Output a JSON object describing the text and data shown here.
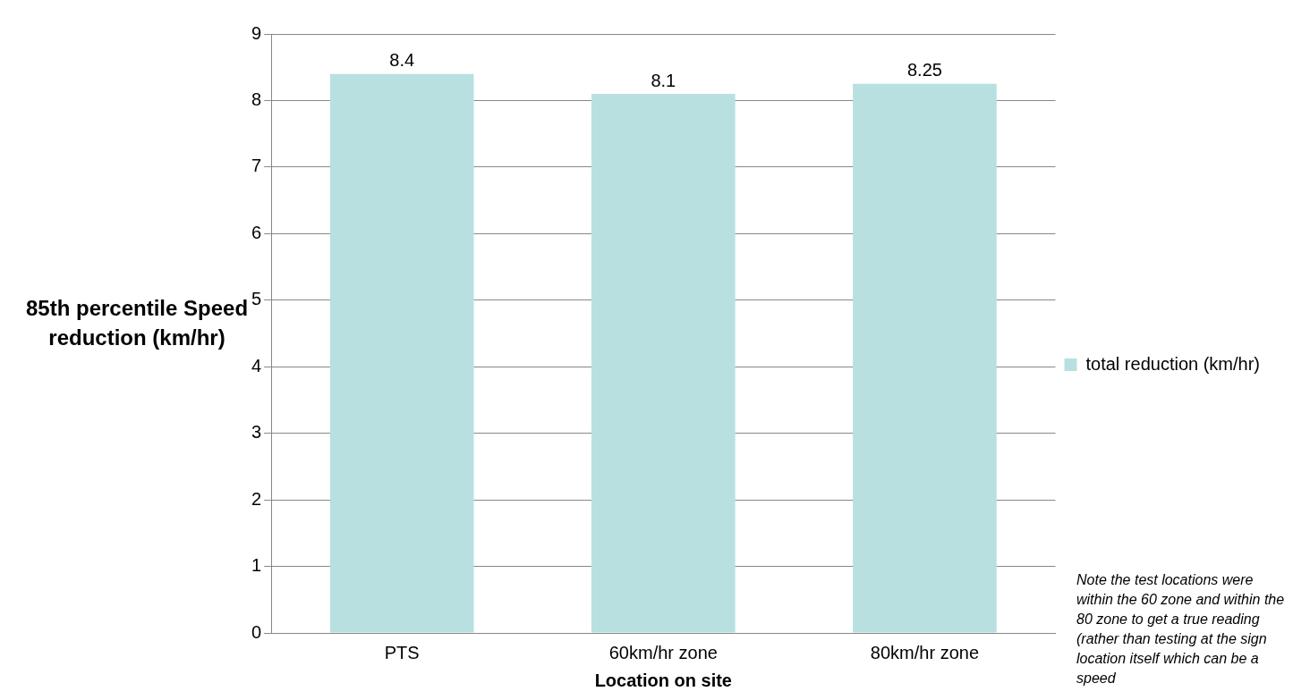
{
  "chart_data": {
    "type": "bar",
    "xlabel": "Location on site",
    "ylabel": "85th percentile Speed reduction (km/hr)",
    "categories": [
      "PTS",
      "60km/hr zone",
      "80km/hr zone"
    ],
    "series": [
      {
        "name": "total reduction (km/hr)",
        "color": "#b9e0e1",
        "values": [
          8.4,
          8.1,
          8.25
        ]
      }
    ],
    "ylim": [
      0,
      9
    ],
    "yticks": [
      0,
      1,
      2,
      3,
      4,
      5,
      6,
      7,
      8,
      9
    ],
    "grid": "y",
    "legend": "right",
    "data_labels": true,
    "annotations": [
      "Note the test locations were within the 60 zone and within the 80 zone to get a true reading (rather than testing at the sign location itself which can be a speed"
    ]
  }
}
